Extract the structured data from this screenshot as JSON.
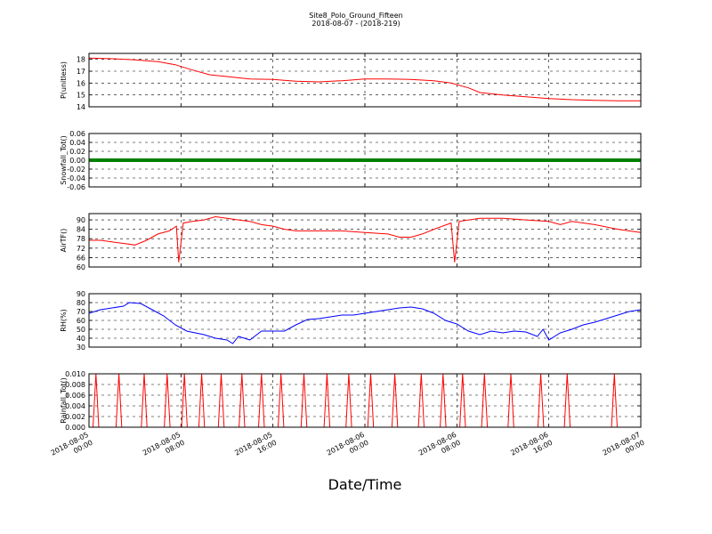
{
  "chart_data": {
    "type": "line",
    "title": "Site8_Polo_Ground_Fifteen",
    "subtitle": "2018-08-07 - (2018-219)",
    "xlabel": "Date/Time",
    "x_ticks": [
      {
        "value": "2018-08-05 00:00",
        "line1": "2018-08-05",
        "line2": "00:00"
      },
      {
        "value": "2018-08-05 08:00",
        "line1": "2018-08-05",
        "line2": "08:00"
      },
      {
        "value": "2018-08-05 16:00",
        "line1": "2018-08-05",
        "line2": "16:00"
      },
      {
        "value": "2018-08-06 00:00",
        "line1": "2018-08-06",
        "line2": "00:00"
      },
      {
        "value": "2018-08-06 08:00",
        "line1": "2018-08-06",
        "line2": "08:00"
      },
      {
        "value": "2018-08-06 16:00",
        "line1": "2018-08-06",
        "line2": "16:00"
      },
      {
        "value": "2018-08-07 00:00",
        "line1": "2018-08-07",
        "line2": "00:00"
      }
    ],
    "xlim": [
      "2018-08-05 00:00",
      "2018-08-07 00:00"
    ],
    "grid": true,
    "panels": [
      {
        "ylabel": "P(unitless)",
        "color": "#ff0000",
        "ylim": [
          14,
          18.5
        ],
        "yticks": [
          "14",
          "15",
          "16",
          "17",
          "18"
        ],
        "series": [
          {
            "x": 0,
            "y": 18.1
          },
          {
            "x": 2,
            "y": 18.05
          },
          {
            "x": 4,
            "y": 17.95
          },
          {
            "x": 6,
            "y": 17.8
          },
          {
            "x": 7.5,
            "y": 17.55
          },
          {
            "x": 9,
            "y": 17.1
          },
          {
            "x": 10.5,
            "y": 16.7
          },
          {
            "x": 12,
            "y": 16.55
          },
          {
            "x": 14,
            "y": 16.35
          },
          {
            "x": 16,
            "y": 16.3
          },
          {
            "x": 18,
            "y": 16.15
          },
          {
            "x": 20,
            "y": 16.1
          },
          {
            "x": 22,
            "y": 16.2
          },
          {
            "x": 24,
            "y": 16.35
          },
          {
            "x": 26,
            "y": 16.35
          },
          {
            "x": 28,
            "y": 16.3
          },
          {
            "x": 30,
            "y": 16.2
          },
          {
            "x": 31.5,
            "y": 16.0
          },
          {
            "x": 33,
            "y": 15.6
          },
          {
            "x": 34,
            "y": 15.2
          },
          {
            "x": 36,
            "y": 15.0
          },
          {
            "x": 38,
            "y": 14.85
          },
          {
            "x": 40,
            "y": 14.7
          },
          {
            "x": 42,
            "y": 14.6
          },
          {
            "x": 44,
            "y": 14.55
          },
          {
            "x": 46,
            "y": 14.5
          },
          {
            "x": 48,
            "y": 14.5
          }
        ]
      },
      {
        "ylabel": "Snowfall_Tot()",
        "color": "#008000",
        "ylim": [
          -0.06,
          0.06
        ],
        "yticks": [
          "-0.06",
          "-0.04",
          "-0.02",
          "0.00",
          "0.02",
          "0.04",
          "0.06"
        ],
        "constant_value": 0.0
      },
      {
        "ylabel": "AirTF()",
        "color": "#ff0000",
        "ylim": [
          60,
          94
        ],
        "yticks": [
          "60",
          "66",
          "72",
          "78",
          "84",
          "90"
        ],
        "series": [
          {
            "x": 0,
            "y": 77
          },
          {
            "x": 1,
            "y": 77
          },
          {
            "x": 2,
            "y": 76
          },
          {
            "x": 3,
            "y": 75
          },
          {
            "x": 4,
            "y": 74
          },
          {
            "x": 5,
            "y": 77
          },
          {
            "x": 6,
            "y": 81
          },
          {
            "x": 7,
            "y": 83
          },
          {
            "x": 7.6,
            "y": 86
          },
          {
            "x": 7.8,
            "y": 63
          },
          {
            "x": 8.2,
            "y": 88
          },
          {
            "x": 9,
            "y": 89
          },
          {
            "x": 10,
            "y": 90
          },
          {
            "x": 11,
            "y": 92
          },
          {
            "x": 12,
            "y": 91
          },
          {
            "x": 13,
            "y": 90
          },
          {
            "x": 14,
            "y": 89
          },
          {
            "x": 15,
            "y": 87
          },
          {
            "x": 16,
            "y": 86
          },
          {
            "x": 17,
            "y": 84
          },
          {
            "x": 18,
            "y": 83
          },
          {
            "x": 20,
            "y": 83
          },
          {
            "x": 22,
            "y": 83
          },
          {
            "x": 24,
            "y": 82
          },
          {
            "x": 26,
            "y": 81
          },
          {
            "x": 27,
            "y": 79
          },
          {
            "x": 28,
            "y": 79
          },
          {
            "x": 29,
            "y": 81
          },
          {
            "x": 30,
            "y": 84
          },
          {
            "x": 31.5,
            "y": 88
          },
          {
            "x": 31.8,
            "y": 63
          },
          {
            "x": 32.2,
            "y": 89
          },
          {
            "x": 34,
            "y": 91
          },
          {
            "x": 36,
            "y": 91
          },
          {
            "x": 38,
            "y": 90
          },
          {
            "x": 40,
            "y": 89
          },
          {
            "x": 41,
            "y": 87
          },
          {
            "x": 42,
            "y": 89
          },
          {
            "x": 44,
            "y": 87
          },
          {
            "x": 46,
            "y": 84
          },
          {
            "x": 48,
            "y": 82
          }
        ]
      },
      {
        "ylabel": "RH(%)",
        "color": "#0000ff",
        "ylim": [
          30,
          90
        ],
        "yticks": [
          "30",
          "40",
          "50",
          "60",
          "70",
          "80",
          "90"
        ],
        "series": [
          {
            "x": 0,
            "y": 68
          },
          {
            "x": 1,
            "y": 72
          },
          {
            "x": 2,
            "y": 74
          },
          {
            "x": 3,
            "y": 76
          },
          {
            "x": 3.5,
            "y": 80
          },
          {
            "x": 4.5,
            "y": 79
          },
          {
            "x": 5.5,
            "y": 72
          },
          {
            "x": 6.5,
            "y": 65
          },
          {
            "x": 7.5,
            "y": 55
          },
          {
            "x": 8.5,
            "y": 48
          },
          {
            "x": 10,
            "y": 44
          },
          {
            "x": 11,
            "y": 40
          },
          {
            "x": 12,
            "y": 38
          },
          {
            "x": 12.5,
            "y": 34
          },
          {
            "x": 13,
            "y": 42
          },
          {
            "x": 14,
            "y": 38
          },
          {
            "x": 15,
            "y": 48
          },
          {
            "x": 16,
            "y": 48
          },
          {
            "x": 17,
            "y": 48
          },
          {
            "x": 18,
            "y": 55
          },
          {
            "x": 19,
            "y": 61
          },
          {
            "x": 20,
            "y": 62
          },
          {
            "x": 21,
            "y": 64
          },
          {
            "x": 22,
            "y": 66
          },
          {
            "x": 23,
            "y": 66
          },
          {
            "x": 24,
            "y": 68
          },
          {
            "x": 25,
            "y": 70
          },
          {
            "x": 26,
            "y": 72
          },
          {
            "x": 27,
            "y": 74
          },
          {
            "x": 28,
            "y": 75
          },
          {
            "x": 29,
            "y": 73
          },
          {
            "x": 30,
            "y": 68
          },
          {
            "x": 31,
            "y": 60
          },
          {
            "x": 32,
            "y": 56
          },
          {
            "x": 33,
            "y": 48
          },
          {
            "x": 34,
            "y": 44
          },
          {
            "x": 35,
            "y": 48
          },
          {
            "x": 36,
            "y": 46
          },
          {
            "x": 37,
            "y": 48
          },
          {
            "x": 38,
            "y": 47
          },
          {
            "x": 39,
            "y": 42
          },
          {
            "x": 39.5,
            "y": 50
          },
          {
            "x": 40,
            "y": 38
          },
          {
            "x": 41,
            "y": 46
          },
          {
            "x": 42,
            "y": 50
          },
          {
            "x": 43,
            "y": 55
          },
          {
            "x": 44,
            "y": 58
          },
          {
            "x": 45,
            "y": 62
          },
          {
            "x": 46,
            "y": 66
          },
          {
            "x": 47,
            "y": 70
          },
          {
            "x": 48,
            "y": 72
          }
        ]
      },
      {
        "ylabel": "Rainfall_Tot()",
        "color": "#ff0000",
        "ylim": [
          0,
          0.01
        ],
        "yticks": [
          "0.000",
          "0.002",
          "0.004",
          "0.006",
          "0.008",
          "0.010"
        ],
        "spike_value": 0.01,
        "spike_times": [
          0.6,
          2.6,
          4.8,
          6.8,
          8.3,
          9.8,
          11.5,
          13.3,
          15.0,
          16.7,
          18.7,
          20.7,
          22.6,
          24.5,
          26.6,
          28.9,
          30.8,
          32.5,
          34.4,
          36.7,
          39.3,
          41.6,
          45.7
        ]
      }
    ]
  }
}
